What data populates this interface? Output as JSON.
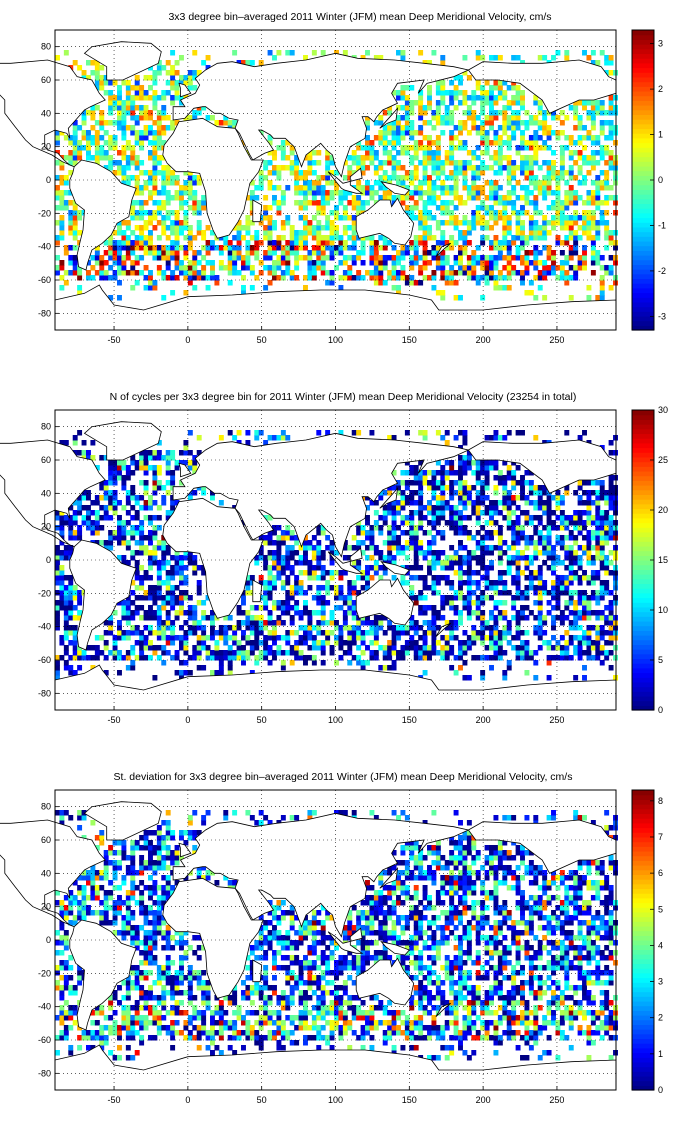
{
  "figure": {
    "panels": [
      {
        "id": "mean",
        "title": "3x3 degree bin–averaged 2011 Winter (JFM) mean Deep Meridional Velocity, cm/s",
        "colorbar": {
          "min": -3.3,
          "max": 3.3,
          "ticks": [
            "-3",
            "-2",
            "-1",
            "0",
            "1",
            "2",
            "3"
          ],
          "tick_values": [
            -3,
            -2,
            -1,
            0,
            1,
            2,
            3
          ]
        }
      },
      {
        "id": "count",
        "title": "N of cycles per 3x3 degree bin for 2011 Winter (JFM) mean Deep Meridional Velocity (23254 in total)",
        "colorbar": {
          "min": 0,
          "max": 30,
          "ticks": [
            "0",
            "5",
            "10",
            "15",
            "20",
            "25",
            "30"
          ],
          "tick_values": [
            0,
            5,
            10,
            15,
            20,
            25,
            30
          ]
        }
      },
      {
        "id": "std",
        "title": "St. deviation for 3x3 degree bin–averaged 2011 Winter (JFM) mean Deep Meridional Velocity, cm/s",
        "colorbar": {
          "min": 0,
          "max": 8.3,
          "ticks": [
            "0",
            "1",
            "2",
            "3",
            "4",
            "5",
            "6",
            "7",
            "8"
          ],
          "tick_values": [
            0,
            1,
            2,
            3,
            4,
            5,
            6,
            7,
            8
          ]
        }
      }
    ],
    "x_axis": {
      "range": [
        -90,
        290
      ],
      "ticks": [
        "-50",
        "0",
        "50",
        "100",
        "150",
        "200",
        "250"
      ],
      "tick_values": [
        -50,
        0,
        50,
        100,
        150,
        200,
        250
      ]
    },
    "y_axis": {
      "range": [
        -90,
        90
      ],
      "ticks": [
        "-80",
        "-60",
        "-40",
        "-20",
        "0",
        "20",
        "40",
        "60",
        "80"
      ],
      "tick_values": [
        -80,
        -60,
        -40,
        -20,
        0,
        20,
        40,
        60,
        80
      ]
    },
    "grid": "dotted",
    "colormap": "jet",
    "bin_size_deg": 3
  }
}
